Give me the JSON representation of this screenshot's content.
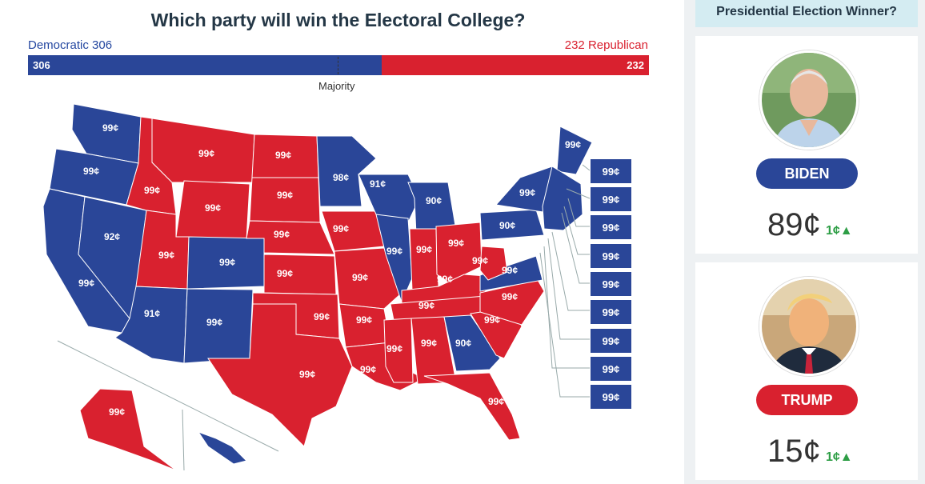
{
  "header": {
    "title": "Which party will win the Electoral College?"
  },
  "tally": {
    "dem_label": "Democratic 306",
    "rep_label": "232 Republican",
    "dem_value": "306",
    "rep_value": "232",
    "majority_label": "Majority",
    "dem_share": 0.569
  },
  "map_prices": {
    "wa": "99¢",
    "or": "99¢",
    "ca": "99¢",
    "nv": "92¢",
    "id": "99¢",
    "mt": "99¢",
    "wy": "99¢",
    "ut": "99¢",
    "az": "91¢",
    "co": "99¢",
    "nm": "99¢",
    "nd": "99¢",
    "sd": "99¢",
    "ne": "99¢",
    "ks": "99¢",
    "ok": "99¢",
    "tx": "99¢",
    "mn": "98¢",
    "ia": "99¢",
    "mo": "99¢",
    "ar": "99¢",
    "la": "99¢",
    "wi": "91¢",
    "il": "99¢",
    "mi": "90¢",
    "in": "99¢",
    "oh": "99¢",
    "ky": "99¢",
    "tn": "99¢",
    "ms": "99¢",
    "al": "99¢",
    "ga": "90¢",
    "fl": "99¢",
    "sc": "99¢",
    "nc": "99¢",
    "va": "99¢",
    "wv": "99¢",
    "pa": "90¢",
    "ny": "99¢",
    "me": "99¢",
    "ak": "99¢"
  },
  "small_states": [
    "99¢",
    "99¢",
    "99¢",
    "99¢",
    "99¢",
    "99¢",
    "99¢",
    "99¢",
    "99¢"
  ],
  "sidebar": {
    "header": "Presidential Election Winner?",
    "candidates": [
      {
        "name": "BIDEN",
        "price": "89¢",
        "change": "1¢▲",
        "color": "#2a4698"
      },
      {
        "name": "TRUMP",
        "price": "15¢",
        "change": "1¢▲",
        "color": "#d9212f"
      }
    ]
  },
  "colors": {
    "dem": "#2a4698",
    "rep": "#d9212f"
  }
}
